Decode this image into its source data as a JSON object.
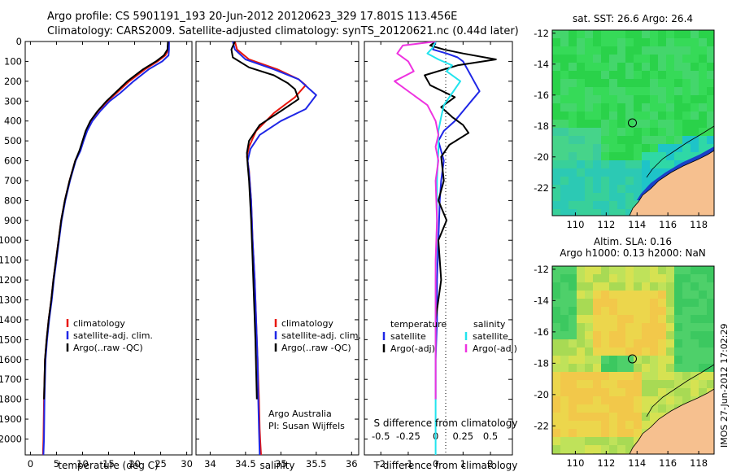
{
  "header": {
    "title_line1": "Argo profile: CS 5901191_193 20-Jun-2012 20120623_329 17.801S 113.456E",
    "title_line2": "Climatology: CARS2009. Satellite-adjusted climatology: synTS_20120621.nc (0.44d later)"
  },
  "colors": {
    "red": "#e8170e",
    "blue": "#1f27e6",
    "black": "#000000",
    "cyan": "#22e4ee",
    "magenta": "#ee33e0",
    "land": "#f6c08f"
  },
  "chart_data": [
    {
      "type": "line",
      "panel": "temperature",
      "xlabel": "temperature (deg C)",
      "xlim": [
        -1,
        31
      ],
      "xticks": [
        0,
        5,
        10,
        15,
        20,
        25,
        30
      ],
      "ylim": [
        0,
        2080
      ],
      "yticks": [
        0,
        100,
        200,
        300,
        400,
        500,
        600,
        700,
        800,
        900,
        1000,
        1100,
        1200,
        1300,
        1400,
        1500,
        1600,
        1700,
        1800,
        1900,
        2000
      ],
      "legend": [
        "climatology",
        "satellite-adj. clim.",
        "Argo(..raw -QC)"
      ],
      "series": [
        {
          "name": "climatology",
          "color": "#e8170e",
          "x": [
            26.6,
            26.5,
            25.9,
            24.4,
            22.0,
            19.0,
            16.5,
            14.8,
            13.0,
            11.6,
            10.7,
            10.1,
            9.5,
            8.6,
            7.5,
            6.6,
            5.9,
            5.4,
            4.9,
            4.4,
            4.0,
            3.5,
            3.1,
            2.8,
            2.6,
            2.5,
            2.4
          ],
          "y": [
            0,
            40,
            70,
            100,
            140,
            200,
            260,
            300,
            350,
            400,
            450,
            500,
            550,
            600,
            700,
            800,
            900,
            1000,
            1100,
            1200,
            1300,
            1400,
            1500,
            1600,
            1800,
            2000,
            2080
          ]
        },
        {
          "name": "satellite-adj. clim.",
          "color": "#1f27e6",
          "x": [
            26.6,
            26.6,
            26.5,
            25.3,
            22.7,
            19.8,
            17.2,
            15.2,
            13.4,
            11.9,
            10.9,
            10.2,
            9.6,
            8.7,
            7.6,
            6.7,
            6.0,
            5.5,
            5.0,
            4.5,
            4.1,
            3.6,
            3.2,
            2.9,
            2.7,
            2.6,
            2.5
          ],
          "y": [
            0,
            40,
            70,
            100,
            140,
            200,
            260,
            300,
            350,
            400,
            450,
            500,
            550,
            600,
            700,
            800,
            900,
            1000,
            1100,
            1200,
            1300,
            1400,
            1500,
            1600,
            1800,
            2000,
            2080
          ]
        },
        {
          "name": "Argo(..raw -QC)",
          "color": "#000000",
          "x": [
            26.4,
            26.3,
            25.6,
            24.1,
            21.6,
            18.6,
            16.2,
            14.6,
            12.9,
            11.5,
            10.6,
            10.0,
            9.4,
            8.6,
            7.5,
            6.6,
            5.9,
            5.4,
            4.9,
            4.4,
            4.0,
            3.5,
            3.1,
            2.8,
            2.6
          ],
          "y": [
            0,
            40,
            70,
            100,
            140,
            200,
            260,
            300,
            350,
            400,
            450,
            500,
            550,
            600,
            700,
            800,
            900,
            1000,
            1100,
            1200,
            1300,
            1400,
            1500,
            1600,
            1800
          ]
        }
      ]
    },
    {
      "type": "line",
      "panel": "salinity",
      "xlabel": "salinity",
      "xlim": [
        33.8,
        36.1
      ],
      "xticks": [
        34,
        34.5,
        35,
        35.5,
        36
      ],
      "xticklabels": [
        "34",
        "34.5",
        "35",
        "35.5",
        "36"
      ],
      "ylim": [
        0,
        2080
      ],
      "legend": [
        "climatology",
        "satellite-adj. clim.",
        "Argo(..raw -QC)"
      ],
      "annotation_lines": [
        "Argo Australia",
        "PI: Susan Wijffels"
      ],
      "series": [
        {
          "name": "climatology",
          "color": "#e8170e",
          "x": [
            34.35,
            34.38,
            34.55,
            34.95,
            35.25,
            35.35,
            35.2,
            34.9,
            34.65,
            34.55,
            34.52,
            34.55,
            34.58,
            34.6,
            34.63,
            34.65,
            34.67,
            34.69,
            34.7,
            34.71,
            34.72
          ],
          "y": [
            0,
            40,
            90,
            140,
            190,
            220,
            280,
            360,
            450,
            530,
            580,
            650,
            800,
            1000,
            1200,
            1400,
            1600,
            1800,
            1950,
            2020,
            2080
          ]
        },
        {
          "name": "satellite-adj. clim.",
          "color": "#1f27e6",
          "x": [
            34.32,
            34.35,
            34.5,
            34.9,
            35.25,
            35.5,
            35.35,
            35.0,
            34.7,
            34.57,
            34.53,
            34.55,
            34.58,
            34.6,
            34.63,
            34.65,
            34.67,
            34.68,
            34.69,
            34.7
          ],
          "y": [
            0,
            40,
            90,
            140,
            190,
            270,
            340,
            400,
            470,
            540,
            600,
            660,
            800,
            1000,
            1200,
            1400,
            1600,
            1800,
            1950,
            2080
          ]
        },
        {
          "name": "Argo(..raw -QC)",
          "color": "#000000",
          "x": [
            34.35,
            34.3,
            34.32,
            34.55,
            34.9,
            35.1,
            35.2,
            35.25,
            35.0,
            34.7,
            34.55,
            34.52,
            34.53,
            34.55,
            34.58,
            34.6,
            34.62,
            34.64,
            34.66
          ],
          "y": [
            0,
            40,
            80,
            130,
            170,
            210,
            240,
            290,
            350,
            420,
            500,
            560,
            620,
            700,
            900,
            1100,
            1300,
            1500,
            1800
          ]
        }
      ]
    },
    {
      "type": "line",
      "panel": "differences",
      "xlabel": "T difference from climatology",
      "xlabel_top": "S difference from climatology",
      "xlim": [
        -2.6,
        2.8
      ],
      "xticks_T": [
        -2,
        -1,
        0,
        1,
        2
      ],
      "xticks_S": [
        -0.5,
        -0.25,
        0,
        0.25,
        0.5
      ],
      "ylim": [
        0,
        2080
      ],
      "legend_left_title": "temperature",
      "legend_right_title": "salinity",
      "legend": [
        "satellite",
        "Argo(-adj)",
        "satellite",
        "Argo(-adj)"
      ],
      "series": [
        {
          "name": "temperature satellite",
          "color": "#1f27e6",
          "x": [
            0,
            -0.1,
            0.4,
            0.8,
            1.0,
            1.2,
            1.4,
            1.6,
            1.3,
            1.0,
            0.7,
            0.3,
            0.1,
            0.3,
            0.2,
            0.15,
            0.1,
            0.05,
            0.05,
            0.0,
            0.0
          ],
          "y": [
            0,
            40,
            60,
            80,
            100,
            150,
            200,
            250,
            300,
            350,
            400,
            450,
            500,
            600,
            700,
            800,
            1000,
            1200,
            1400,
            1600,
            1800
          ]
        },
        {
          "name": "temperature Argo(-adj)",
          "color": "#000000",
          "x": [
            0,
            -0.2,
            0.3,
            1.0,
            2.2,
            0.8,
            -0.4,
            -0.2,
            0.7,
            0.2,
            0.6,
            1.0,
            1.2,
            0.5,
            0.2,
            0.3,
            0.1,
            0.4,
            0.1,
            0.2,
            0.0
          ],
          "y": [
            0,
            20,
            40,
            60,
            90,
            120,
            170,
            220,
            280,
            330,
            380,
            420,
            460,
            520,
            580,
            700,
            800,
            900,
            1000,
            1200,
            1400
          ]
        },
        {
          "name": "salinity satellite",
          "color": "#22e4ee",
          "x": [
            0,
            -0.1,
            -0.3,
            0.1,
            0.6,
            0.4,
            0.9,
            0.6,
            0.3,
            0.2,
            0.1,
            0.1,
            0.05,
            0.05,
            0.0,
            0.0,
            0.0,
            0.0
          ],
          "y": [
            0,
            30,
            60,
            90,
            120,
            150,
            200,
            260,
            320,
            380,
            450,
            550,
            700,
            900,
            1200,
            1500,
            1800,
            2080
          ]
        },
        {
          "name": "salinity Argo(-adj)",
          "color": "#ee33e0",
          "x": [
            0,
            -1.2,
            -1.4,
            -1.0,
            -0.8,
            -1.5,
            -0.9,
            -0.3,
            0.0,
            0.1,
            0.0,
            0.1,
            0.0,
            0.05,
            0.0,
            0.0,
            0.0
          ],
          "y": [
            0,
            20,
            60,
            100,
            150,
            200,
            260,
            320,
            400,
            470,
            530,
            600,
            700,
            900,
            1100,
            1400,
            1800
          ]
        }
      ]
    }
  ],
  "map_sst": {
    "title": "sat. SST: 26.6 Argo: 26.4",
    "lon_ticks": [
      "110",
      "112",
      "114",
      "116",
      "118"
    ],
    "lat_ticks": [
      "-12",
      "-14",
      "-16",
      "-18",
      "-20",
      "-22"
    ]
  },
  "map_sla": {
    "title_line1": "Altim. SLA: 0.16",
    "title_line2": "Argo h1000: 0.13 h2000: NaN",
    "lon_ticks": [
      "110",
      "112",
      "114",
      "116",
      "118"
    ],
    "lat_ticks": [
      "-12",
      "-14",
      "-16",
      "-18",
      "-20",
      "-22"
    ]
  },
  "stamp": "IMOS 27-Jun-2012 17:02:29"
}
